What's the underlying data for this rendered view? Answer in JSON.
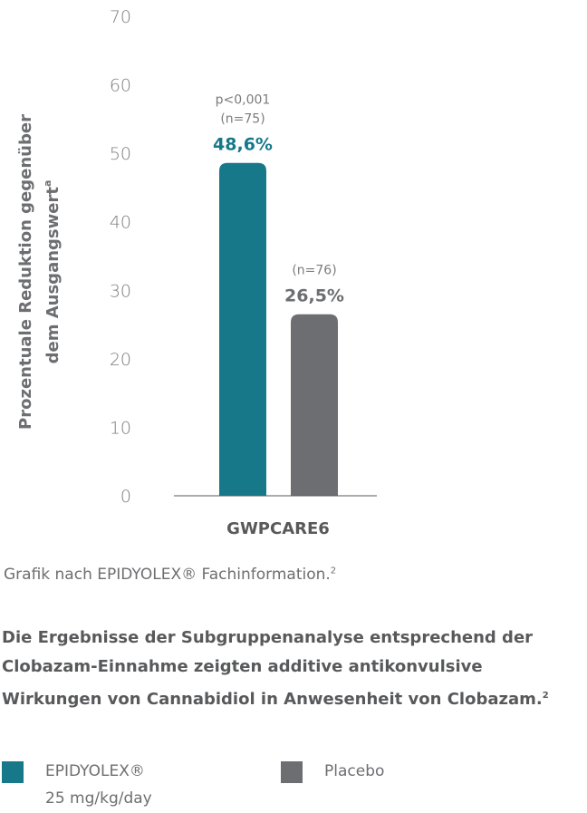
{
  "chart_data": {
    "type": "bar",
    "title": "",
    "ylabel_line1": "Prozentuale Reduktion gegenüber",
    "ylabel_line2": "dem Ausgangswert",
    "ylabel_sup": "a",
    "ylim": [
      0,
      70
    ],
    "yticks": [
      "0",
      "10",
      "20",
      "30",
      "40",
      "50",
      "60",
      "70"
    ],
    "categories": [
      "GWPCARE6"
    ],
    "series": [
      {
        "name": "EPIDYOLEX® 25 mg/kg/day",
        "values": [
          48.6
        ],
        "value_label": "48,6%",
        "annotations": [
          "p<0,001",
          "(n=75)"
        ],
        "color": "#17788a"
      },
      {
        "name": "Placebo",
        "values": [
          26.5
        ],
        "value_label": "26,5%",
        "annotations": [
          "(n=76)"
        ],
        "color": "#6d6e71"
      }
    ],
    "grid": false
  },
  "source_text": "Grafik nach EPIDYOLEX® Fachinformation.",
  "source_sup": "2",
  "statement_text": "Die Ergebnisse der Subgruppenanalyse entsprechend der Clobazam-Einnahme zeigten additive antikonvulsive Wirkungen von Cannabidiol in Anwesenheit von Clobazam.",
  "statement_sup": "2",
  "legend": {
    "items": [
      {
        "line1": "EPIDYOLEX®",
        "line2": "25 mg/kg/day",
        "color": "#17788a"
      },
      {
        "line1": "Placebo",
        "line2": "",
        "color": "#6d6e71"
      }
    ]
  }
}
